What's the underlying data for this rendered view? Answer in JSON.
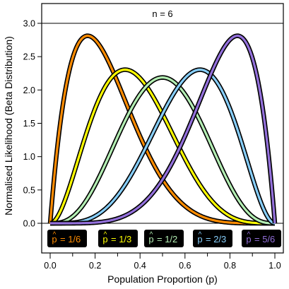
{
  "chart_data": {
    "type": "line",
    "panel_label": "n = 6",
    "xlabel": "Population Proportion (p)",
    "ylabel": "Normalised Likelihood (Beta Distribution)",
    "xlim": [
      0.0,
      1.0
    ],
    "ylim": [
      0.0,
      3.0
    ],
    "x_ticks": [
      0.0,
      0.2,
      0.4,
      0.6,
      0.8,
      1.0
    ],
    "x_tick_labels": [
      "0.0",
      "0.2",
      "0.4",
      "0.6",
      "0.8",
      "1.0"
    ],
    "y_ticks": [
      0.0,
      0.5,
      1.0,
      1.5,
      2.0,
      2.5,
      3.0
    ],
    "y_tick_labels": [
      "0.0",
      "0.5",
      "1.0",
      "1.5",
      "2.0",
      "2.5",
      "3.0"
    ],
    "grid": false,
    "n": 6,
    "series": [
      {
        "name": "p̂ = 1/6",
        "k": 1,
        "color": "#FF8C00",
        "legend_text": "= 1/6"
      },
      {
        "name": "p̂ = 1/3",
        "k": 2,
        "color": "#FFFF00",
        "legend_text": "= 1/3"
      },
      {
        "name": "p̂ = 1/2",
        "k": 3,
        "color": "#B3EEB3",
        "legend_text": "= 1/2"
      },
      {
        "name": "p̂ = 2/3",
        "k": 4,
        "color": "#87CEFA",
        "legend_text": "= 2/3"
      },
      {
        "name": "p̂ = 5/6",
        "k": 5,
        "color": "#9370DB",
        "legend_text": "= 5/6"
      }
    ],
    "legend_placement": "bottom",
    "legend_hat_symbol": "p",
    "colors": {
      "outline": "#000000",
      "legend_bg": "#000000"
    }
  }
}
